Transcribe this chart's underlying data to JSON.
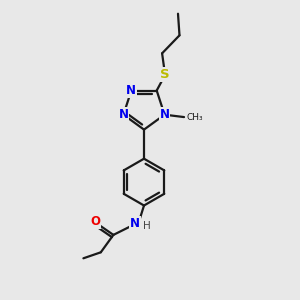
{
  "bg_color": "#e8e8e8",
  "bond_color": "#1a1a1a",
  "bond_width": 1.6,
  "atom_colors": {
    "N": "#0000ee",
    "S": "#bbbb00",
    "O": "#ee0000",
    "C": "#1a1a1a",
    "H": "#444444"
  },
  "font_size": 8.5,
  "fig_size": [
    3.0,
    3.0
  ],
  "dpi": 100
}
